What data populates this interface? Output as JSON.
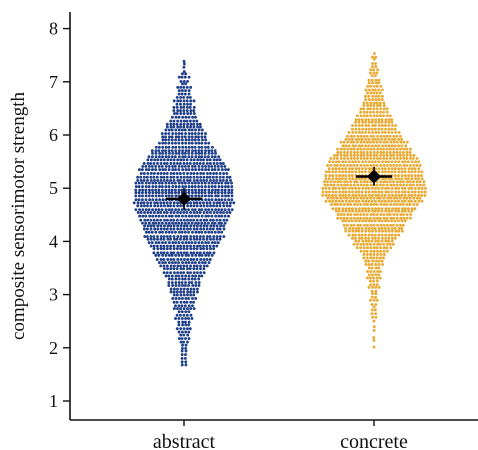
{
  "chart_data": {
    "type": "scatter",
    "subtype": "beeswarm",
    "title": "",
    "xlabel": "",
    "ylabel": "composite sensorimotor strength",
    "ylim": [
      0.7,
      8.35
    ],
    "yticks": [
      1,
      2,
      3,
      4,
      5,
      6,
      7,
      8
    ],
    "grid": false,
    "legend": "none",
    "categories": [
      "abstract",
      "concrete"
    ],
    "series": [
      {
        "category": "abstract",
        "color": "#1f3f8a",
        "mean": 4.8,
        "ci": [
          4.6,
          5.0
        ],
        "min": 1.55,
        "max": 7.45,
        "density": [
          [
            1.55,
            1
          ],
          [
            1.8,
            2
          ],
          [
            2.0,
            2
          ],
          [
            2.2,
            3
          ],
          [
            2.4,
            4
          ],
          [
            2.6,
            5
          ],
          [
            2.8,
            6
          ],
          [
            3.0,
            8
          ],
          [
            3.2,
            10
          ],
          [
            3.4,
            13
          ],
          [
            3.6,
            16
          ],
          [
            3.8,
            19
          ],
          [
            4.0,
            22
          ],
          [
            4.2,
            25
          ],
          [
            4.4,
            27
          ],
          [
            4.6,
            29
          ],
          [
            4.8,
            30
          ],
          [
            5.0,
            30
          ],
          [
            5.2,
            29
          ],
          [
            5.4,
            26
          ],
          [
            5.6,
            22
          ],
          [
            5.8,
            17
          ],
          [
            6.0,
            13
          ],
          [
            6.2,
            10
          ],
          [
            6.4,
            8
          ],
          [
            6.6,
            6
          ],
          [
            6.8,
            4
          ],
          [
            7.0,
            3
          ],
          [
            7.2,
            2
          ],
          [
            7.45,
            1
          ]
        ]
      },
      {
        "category": "concrete",
        "color": "#e8aa32",
        "mean": 5.22,
        "ci": [
          5.05,
          5.4
        ],
        "min": 1.7,
        "max": 7.6,
        "density": [
          [
            1.7,
            1
          ],
          [
            2.4,
            1
          ],
          [
            2.8,
            2
          ],
          [
            3.0,
            2
          ],
          [
            3.2,
            3
          ],
          [
            3.4,
            4
          ],
          [
            3.6,
            6
          ],
          [
            3.8,
            9
          ],
          [
            4.0,
            13
          ],
          [
            4.2,
            17
          ],
          [
            4.4,
            21
          ],
          [
            4.6,
            26
          ],
          [
            4.8,
            30
          ],
          [
            5.0,
            32
          ],
          [
            5.2,
            30
          ],
          [
            5.4,
            28
          ],
          [
            5.6,
            25
          ],
          [
            5.8,
            21
          ],
          [
            6.0,
            17
          ],
          [
            6.2,
            13
          ],
          [
            6.4,
            10
          ],
          [
            6.6,
            7
          ],
          [
            6.8,
            5
          ],
          [
            7.0,
            4
          ],
          [
            7.2,
            3
          ],
          [
            7.4,
            2
          ],
          [
            7.6,
            1
          ]
        ]
      }
    ]
  }
}
